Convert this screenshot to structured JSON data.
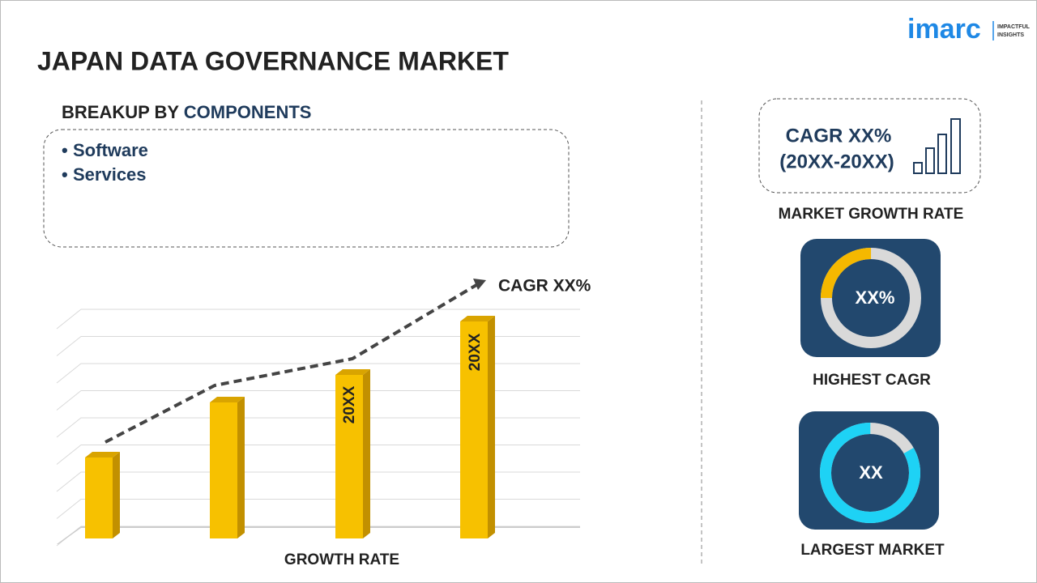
{
  "logo": {
    "name": "imarc",
    "tagline": [
      "IMPACTFUL",
      "INSIGHTS"
    ]
  },
  "title": "JAPAN DATA GOVERNANCE MARKET",
  "breakup": {
    "label": "BREAKUP BY",
    "highlight": "COMPONENTS",
    "items": [
      "Software",
      "Services"
    ]
  },
  "growth_chart": {
    "cagr_label": "CAGR XX%",
    "bar_labels": [
      "20XX",
      "20XX"
    ],
    "axis_label": "GROWTH RATE"
  },
  "cards": {
    "market_growth": {
      "line1": "CAGR XX%",
      "line2": "(20XX-20XX)",
      "label": "MARKET GROWTH RATE"
    },
    "highest_cagr": {
      "value": "XX%",
      "label": "HIGHEST CAGR"
    },
    "largest_market": {
      "value": "XX",
      "label": "LARGEST MARKET"
    }
  }
}
